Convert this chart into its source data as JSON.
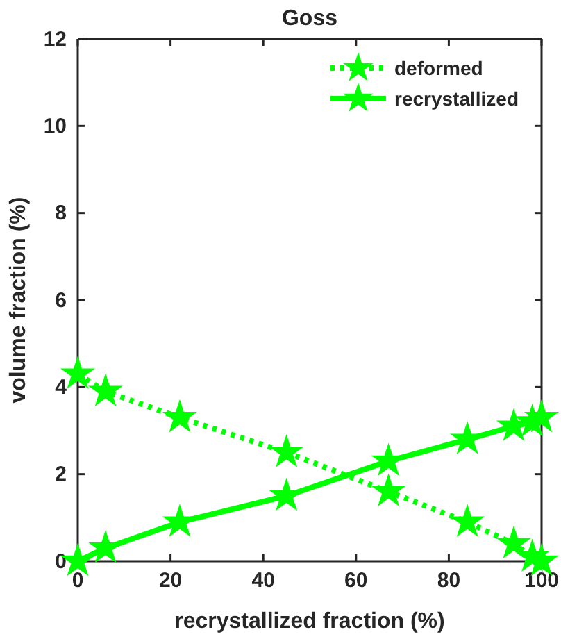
{
  "chart_data": {
    "type": "line",
    "title": "Goss",
    "xlabel": "recrystallized fraction (%)",
    "ylabel": "volume fraction (%)",
    "x": [
      0,
      6,
      22,
      45,
      67,
      84,
      94,
      98,
      100
    ],
    "series": [
      {
        "name": "deformed",
        "color": "#00ff00",
        "line_style": "dotted",
        "values": [
          4.3,
          3.9,
          3.3,
          2.5,
          1.6,
          0.9,
          0.4,
          0.1,
          0
        ]
      },
      {
        "name": "recrystallized",
        "color": "#00ff00",
        "line_style": "solid",
        "values": [
          0,
          0.3,
          0.9,
          1.5,
          2.3,
          2.8,
          3.1,
          3.2,
          3.3
        ]
      }
    ],
    "xlim": [
      0,
      100
    ],
    "xticks": [
      0,
      20,
      40,
      60,
      80,
      100
    ],
    "ylim": [
      0,
      12
    ],
    "yticks": [
      0,
      2,
      4,
      6,
      8,
      10,
      12
    ],
    "grid": false,
    "legend": "top right",
    "marker": "star"
  }
}
